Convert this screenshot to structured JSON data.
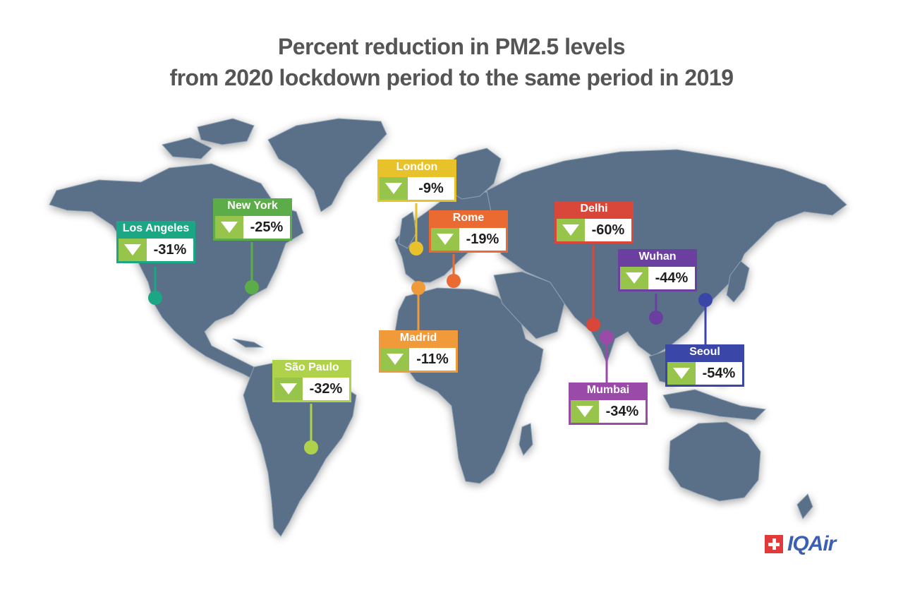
{
  "title": {
    "line1": "Percent reduction in PM2.5 levels",
    "line2": "from 2020 lockdown period to the same period in 2019"
  },
  "cities": [
    {
      "name": "Los Angeles",
      "value": "-31%",
      "color": "#1ba784"
    },
    {
      "name": "New York",
      "value": "-25%",
      "color": "#5cad4a"
    },
    {
      "name": "London",
      "value": "-9%",
      "color": "#e8c22a"
    },
    {
      "name": "Rome",
      "value": "-19%",
      "color": "#ea6a32"
    },
    {
      "name": "Madrid",
      "value": "-11%",
      "color": "#f09a3a"
    },
    {
      "name": "São Paulo",
      "value": "-32%",
      "color": "#b0d24a"
    },
    {
      "name": "Delhi",
      "value": "-60%",
      "color": "#d8473a"
    },
    {
      "name": "Wuhan",
      "value": "-44%",
      "color": "#6a3fa0"
    },
    {
      "name": "Seoul",
      "value": "-54%",
      "color": "#3a47a8"
    },
    {
      "name": "Mumbai",
      "value": "-34%",
      "color": "#9a4aa8"
    }
  ],
  "indicator_color": "#97c44a",
  "logo": {
    "text": "IQAir",
    "icon": "swiss-cross-icon",
    "color": "#3a5fb5",
    "mark_color": "#e23a3a"
  }
}
